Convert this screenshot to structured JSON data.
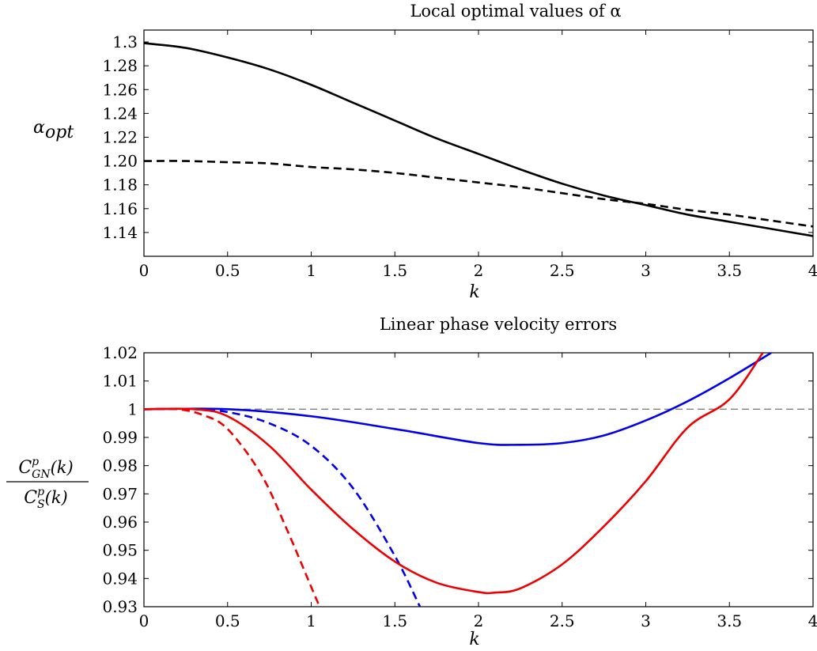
{
  "chart_data": [
    {
      "type": "line",
      "title": "Local optimal values of α",
      "xlabel": "k",
      "ylabel": "α_opt",
      "xlim": [
        0,
        4
      ],
      "ylim": [
        1.12,
        1.31
      ],
      "x_ticks": [
        "0",
        "0.5",
        "1",
        "1.5",
        "2",
        "2.5",
        "3",
        "3.5",
        "4"
      ],
      "x_tick_values": [
        0,
        0.5,
        1,
        1.5,
        2,
        2.5,
        3,
        3.5,
        4
      ],
      "y_ticks": [
        "1.14",
        "1.16",
        "1.18",
        "1.20",
        "1.22",
        "1.24",
        "1.26",
        "1.28",
        "1.3"
      ],
      "y_tick_values": [
        1.14,
        1.16,
        1.18,
        1.2,
        1.22,
        1.24,
        1.26,
        1.28,
        1.3
      ],
      "grid": false,
      "series": [
        {
          "style": "solid",
          "color": "#000000",
          "x": [
            0,
            0.25,
            0.5,
            0.75,
            1.0,
            1.25,
            1.5,
            1.75,
            2.0,
            2.25,
            2.5,
            2.75,
            3.0,
            3.25,
            3.5,
            3.75,
            4.0
          ],
          "y": [
            1.299,
            1.295,
            1.287,
            1.277,
            1.264,
            1.249,
            1.234,
            1.219,
            1.206,
            1.193,
            1.181,
            1.171,
            1.163,
            1.155,
            1.149,
            1.143,
            1.137
          ]
        },
        {
          "style": "dashed",
          "color": "#000000",
          "x": [
            0,
            0.25,
            0.5,
            0.75,
            1.0,
            1.25,
            1.5,
            1.75,
            2.0,
            2.25,
            2.5,
            2.75,
            3.0,
            3.25,
            3.5,
            3.75,
            4.0
          ],
          "y": [
            1.2,
            1.2,
            1.199,
            1.198,
            1.195,
            1.193,
            1.19,
            1.186,
            1.182,
            1.178,
            1.173,
            1.168,
            1.164,
            1.159,
            1.155,
            1.15,
            1.145
          ]
        }
      ]
    },
    {
      "type": "line",
      "title": "Linear phase velocity errors",
      "xlabel": "k",
      "ylabel_numerator": "C_GN^p(k)",
      "ylabel_denominator": "C_S^p(k)",
      "xlim": [
        0,
        4
      ],
      "ylim": [
        0.93,
        1.02
      ],
      "x_ticks": [
        "0",
        "0.5",
        "1",
        "1.5",
        "2",
        "2.5",
        "3",
        "3.5",
        "4"
      ],
      "x_tick_values": [
        0,
        0.5,
        1,
        1.5,
        2,
        2.5,
        3,
        3.5,
        4
      ],
      "y_ticks": [
        "0.93",
        "0.94",
        "0.95",
        "0.96",
        "0.97",
        "0.98",
        "0.99",
        "1",
        "1.01",
        "1.02"
      ],
      "y_tick_values": [
        0.93,
        0.94,
        0.95,
        0.96,
        0.97,
        0.98,
        0.99,
        1.0,
        1.01,
        1.02
      ],
      "grid": false,
      "reference_line": {
        "y": 1.0,
        "color": "#808080",
        "style": "dashed"
      },
      "series": [
        {
          "style": "solid",
          "color": "#0000ee",
          "x": [
            0,
            0.5,
            1.0,
            1.5,
            2.0,
            2.25,
            2.5,
            2.75,
            3.0,
            3.25,
            3.5,
            3.75
          ],
          "y": [
            1.0,
            1.0,
            0.9975,
            0.993,
            0.988,
            0.9874,
            0.988,
            0.9907,
            0.996,
            1.0028,
            1.011,
            1.02
          ]
        },
        {
          "style": "dashed",
          "color": "#0000ee",
          "x": [
            0,
            0.3,
            0.5,
            0.75,
            1.0,
            1.25,
            1.5,
            1.65
          ],
          "y": [
            1.0,
            1.0,
            0.999,
            0.995,
            0.987,
            0.972,
            0.948,
            0.93
          ]
        },
        {
          "style": "solid",
          "color": "#ee0000",
          "x": [
            0,
            0.3,
            0.5,
            0.75,
            1.0,
            1.25,
            1.5,
            1.75,
            2.0,
            2.1,
            2.25,
            2.5,
            2.75,
            3.0,
            3.25,
            3.5,
            3.7
          ],
          "y": [
            1.0,
            1.0,
            0.9975,
            0.987,
            0.9715,
            0.9575,
            0.946,
            0.9385,
            0.9352,
            0.935,
            0.9365,
            0.945,
            0.9585,
            0.9745,
            0.9935,
            1.0035,
            1.02
          ]
        },
        {
          "style": "dashed",
          "color": "#ee0000",
          "x": [
            0,
            0.2,
            0.35,
            0.5,
            0.7,
            0.85,
            1.0,
            1.05
          ],
          "y": [
            1.0,
            1.0,
            0.998,
            0.993,
            0.977,
            0.958,
            0.937,
            0.93
          ]
        }
      ]
    }
  ]
}
